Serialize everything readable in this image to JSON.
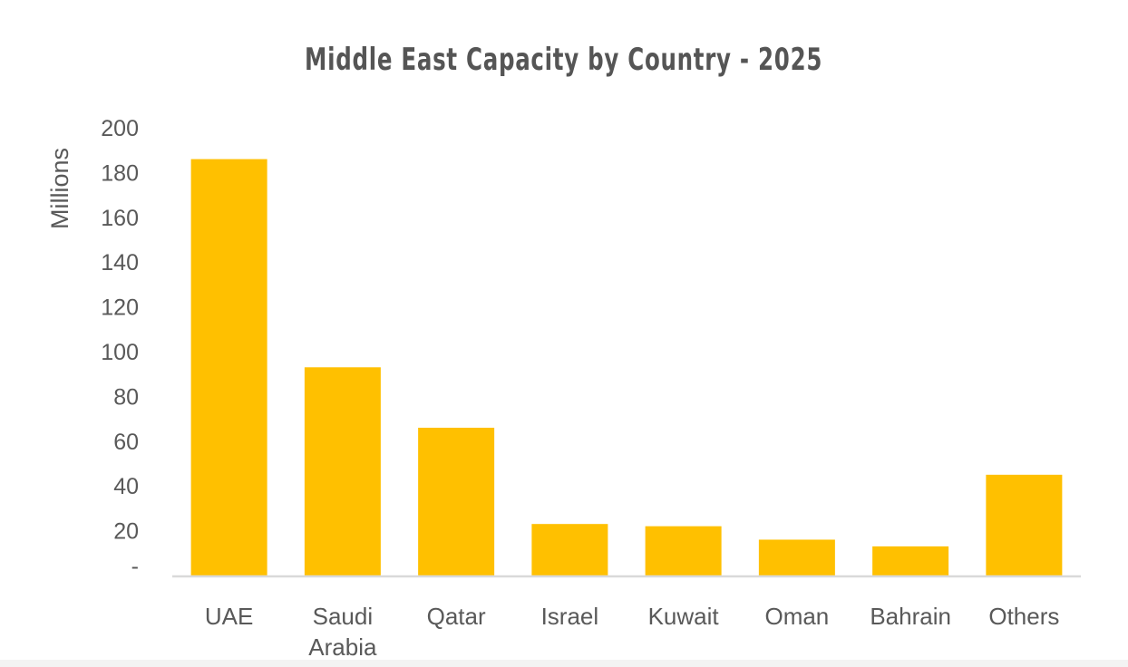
{
  "chart_data": {
    "type": "bar",
    "title": "Middle East Capacity by Country - 2025",
    "xlabel": "",
    "ylabel": "Millions",
    "categories": [
      "UAE",
      "Saudi Arabia",
      "Qatar",
      "Israel",
      "Kuwait",
      "Oman",
      "Bahrain",
      "Others"
    ],
    "category_lines": [
      [
        "UAE"
      ],
      [
        "Saudi",
        "Arabia"
      ],
      [
        "Qatar"
      ],
      [
        "Israel"
      ],
      [
        "Kuwait"
      ],
      [
        "Oman"
      ],
      [
        "Bahrain"
      ],
      [
        "Others"
      ]
    ],
    "values": [
      186,
      93,
      66,
      23,
      22,
      16,
      13,
      45
    ],
    "ylim": [
      0,
      200
    ],
    "yticks": [
      0,
      20,
      40,
      60,
      80,
      100,
      120,
      140,
      160,
      180,
      200
    ],
    "ytick_labels": [
      "-",
      "20",
      "40",
      "60",
      "80",
      "100",
      "120",
      "140",
      "160",
      "180",
      "200"
    ],
    "grid": false,
    "legend": "none",
    "bar_color": "#FFC000",
    "axis_color": "#D9D9D9",
    "text_color": "#595959"
  }
}
